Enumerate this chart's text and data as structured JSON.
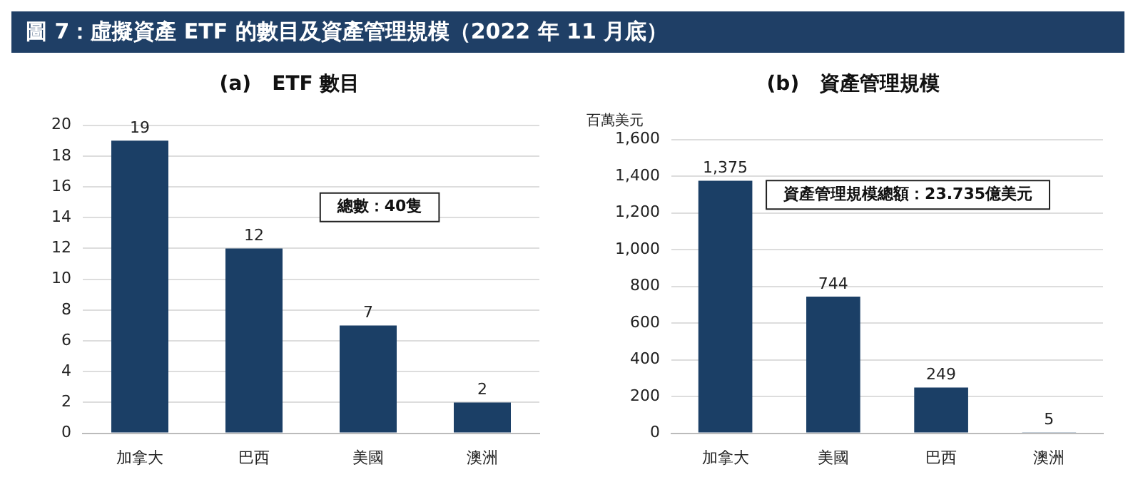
{
  "chart_data": [
    {
      "type": "other",
      "title": "圖 7：虛擬資產 ETF 的數目及資產管理規模（2022 年 11 月底）"
    },
    {
      "type": "bar",
      "title": "(a)   ETF 數目",
      "categories": [
        "加拿大",
        "巴西",
        "美國",
        "澳洲"
      ],
      "values": [
        19,
        12,
        7,
        2
      ],
      "color": "#1b3f66",
      "data_labels": true,
      "ylim": [
        0,
        20
      ],
      "yticks": [
        0,
        2,
        4,
        6,
        8,
        10,
        12,
        14,
        16,
        18,
        20
      ],
      "grid": "y",
      "annotations": [
        "總數：40隻"
      ]
    },
    {
      "type": "bar",
      "title": "(b)   資產管理規模",
      "ylabel": "百萬美元",
      "categories": [
        "加拿大",
        "美國",
        "巴西",
        "澳洲"
      ],
      "values": [
        1375,
        744,
        249,
        5
      ],
      "color": "#1b3f66",
      "data_labels": true,
      "value_labels": [
        "1,375",
        "744",
        "249",
        "5"
      ],
      "ylim": [
        0,
        1600
      ],
      "yticks": [
        0,
        200,
        400,
        600,
        800,
        {
          "value": 1000,
          "label": "1,000"
        },
        {
          "value": 1200,
          "label": "1,200"
        },
        {
          "value": 1400,
          "label": "1,400"
        },
        {
          "value": 1600,
          "label": "1,600"
        }
      ],
      "grid": "y",
      "annotations": [
        "資產管理規模總額：23.735億美元"
      ]
    }
  ]
}
